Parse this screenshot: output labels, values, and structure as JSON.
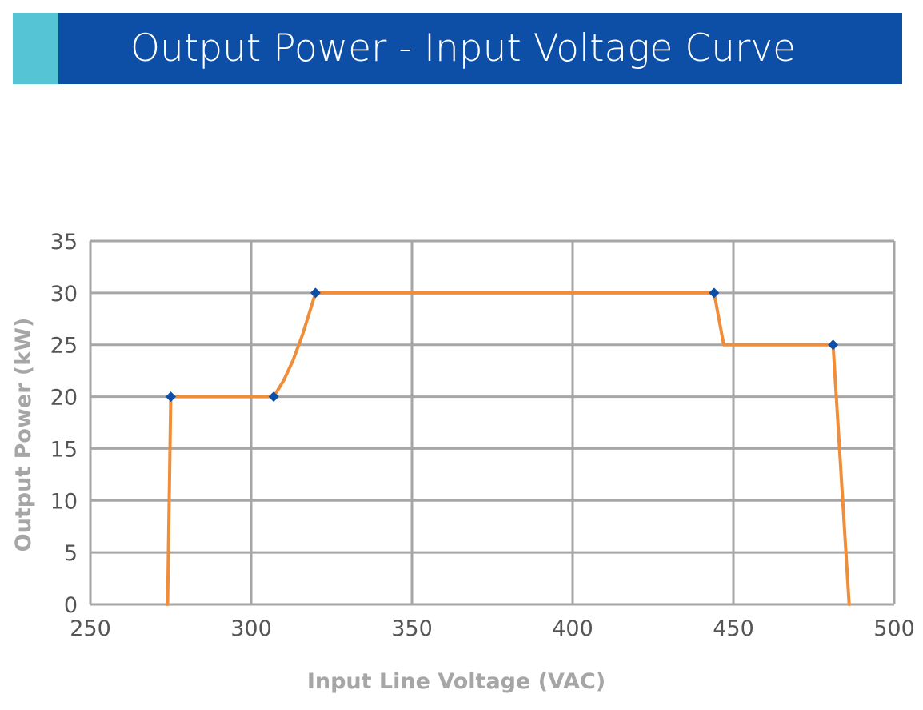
{
  "header": {
    "title": "Output Power - Input Voltage Curve",
    "banner_color": "#0d4ea6",
    "accent_color": "#55c5d6"
  },
  "chart_data": {
    "type": "line",
    "xlabel": "Input Line Voltage (VAC)",
    "ylabel": "Output Power (kW)",
    "xlim": [
      250,
      500
    ],
    "ylim": [
      0,
      35
    ],
    "x_ticks": [
      250,
      300,
      350,
      400,
      450,
      500
    ],
    "y_ticks": [
      0,
      5,
      10,
      15,
      20,
      25,
      30,
      35
    ],
    "grid": true,
    "series": [
      {
        "points": [
          {
            "x": 274,
            "y": 0
          },
          {
            "x": 275,
            "y": 20
          },
          {
            "x": 307,
            "y": 20
          },
          {
            "x": 310,
            "y": 21.5
          },
          {
            "x": 313,
            "y": 23.5
          },
          {
            "x": 316,
            "y": 26
          },
          {
            "x": 318,
            "y": 28
          },
          {
            "x": 320,
            "y": 30
          },
          {
            "x": 444,
            "y": 30
          },
          {
            "x": 447,
            "y": 25
          },
          {
            "x": 481,
            "y": 25
          },
          {
            "x": 486,
            "y": 0
          }
        ],
        "color": "#ef8d3a"
      }
    ],
    "markers": [
      {
        "x": 275,
        "y": 20
      },
      {
        "x": 307,
        "y": 20
      },
      {
        "x": 320,
        "y": 30
      },
      {
        "x": 444,
        "y": 30
      },
      {
        "x": 481,
        "y": 25
      }
    ],
    "marker_color": "#0d4ea6",
    "grid_color": "#a6a6a6",
    "tick_label_color": "#555555",
    "axis_title_color": "#a6a6a6"
  }
}
